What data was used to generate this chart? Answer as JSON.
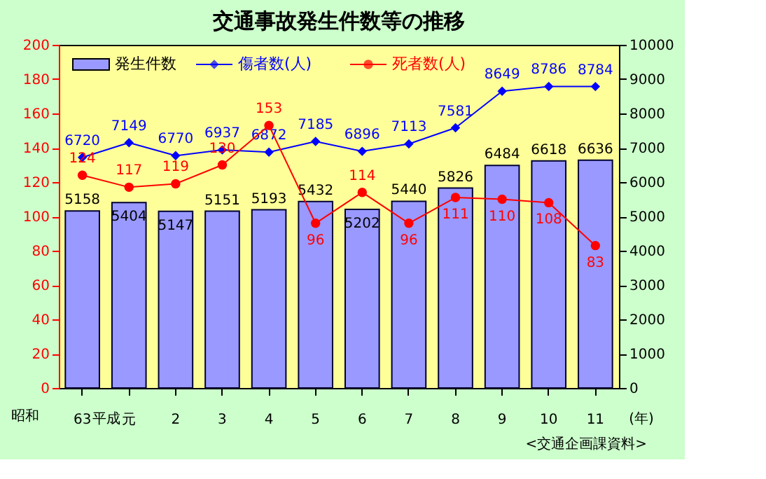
{
  "chart_data": {
    "type": "bar",
    "title": "交通事故発生件数等の推移",
    "categories": [
      "63",
      "元",
      "2",
      "3",
      "4",
      "5",
      "6",
      "7",
      "8",
      "9",
      "10",
      "11"
    ],
    "series": [
      {
        "name": "発生件数",
        "axis": "y2",
        "color": "#9999ff",
        "values": [
          5158,
          5404,
          5147,
          5151,
          5193,
          5432,
          5202,
          5440,
          5826,
          6484,
          6618,
          6636
        ]
      },
      {
        "name": "傷者数(人)",
        "type": "line",
        "axis": "y2",
        "color": "#0000ff",
        "marker": "diamond",
        "values": [
          6720,
          7149,
          6770,
          6937,
          6872,
          7185,
          6896,
          7113,
          7581,
          8649,
          8786,
          8784
        ]
      },
      {
        "name": "死者数(人)",
        "type": "line",
        "axis": "y",
        "color": "#ff0000",
        "marker": "circle",
        "values": [
          124,
          117,
          119,
          130,
          153,
          96,
          114,
          96,
          111,
          110,
          108,
          83
        ]
      }
    ],
    "ylim": [
      0,
      200
    ],
    "yticks": [
      0,
      20,
      40,
      60,
      80,
      100,
      120,
      140,
      160,
      180,
      200
    ],
    "y2lim": [
      0,
      10000
    ],
    "y2ticks": [
      0,
      1000,
      2000,
      3000,
      4000,
      5000,
      6000,
      7000,
      8000,
      9000,
      10000
    ],
    "data_labels": true,
    "legend": "top left",
    "grid": false,
    "annotations": [
      "昭和",
      "平成",
      "(年)",
      "<交通企画課資料>"
    ]
  }
}
